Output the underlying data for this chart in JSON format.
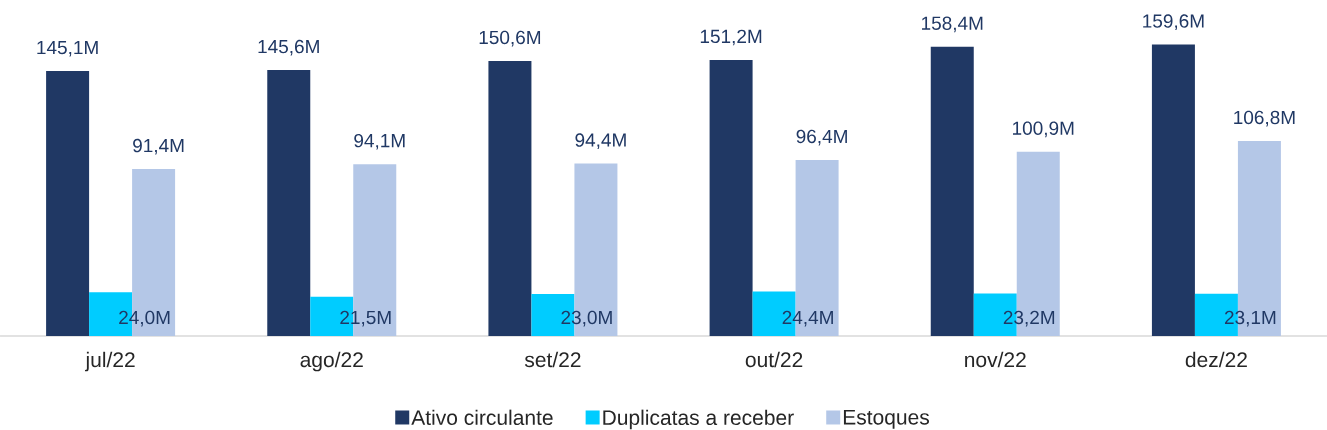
{
  "chart_data": {
    "type": "bar",
    "categories": [
      "jul/22",
      "ago/22",
      "set/22",
      "out/22",
      "nov/22",
      "dez/22"
    ],
    "series": [
      {
        "name": "Ativo circulante",
        "color": "#203864",
        "values": [
          145.1,
          145.6,
          150.6,
          151.2,
          158.4,
          159.6
        ],
        "value_labels": [
          "145,1M",
          "145,6M",
          "150,6M",
          "151,2M",
          "158,4M",
          "159,6M"
        ]
      },
      {
        "name": "Duplicatas a receber",
        "color": "#00ccff",
        "values": [
          24.0,
          21.5,
          23.0,
          24.4,
          23.2,
          23.1
        ],
        "value_labels": [
          "24,0M",
          "21,5M",
          "23,0M",
          "24,4M",
          "23,2M",
          "23,1M"
        ]
      },
      {
        "name": "Estoques",
        "color": "#b4c7e7",
        "values": [
          91.4,
          94.1,
          94.4,
          96.4,
          100.9,
          106.8
        ],
        "value_labels": [
          "91,4M",
          "94,1M",
          "94,4M",
          "96,4M",
          "100,9M",
          "106,8M"
        ]
      }
    ],
    "legend": "bottom"
  }
}
